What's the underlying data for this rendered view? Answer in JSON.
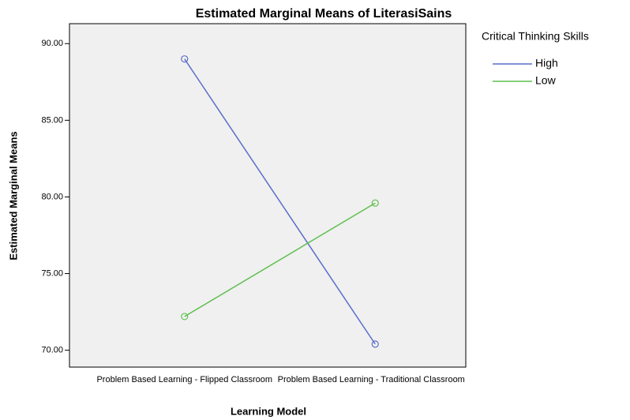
{
  "chart_data": {
    "type": "line",
    "title": "Estimated Marginal Means of LiterasiSains",
    "x_label": "Learning Model",
    "y_label": "Estimated Marginal Means",
    "legend_title": "Critical Thinking Skills",
    "legend_position": "upper right outside",
    "categories": [
      "Problem Based Learning - Flipped Classroom",
      "Problem Based Learning - Traditional Classroom"
    ],
    "series": [
      {
        "name": "High",
        "color": "#5b6ec8",
        "values": [
          89.0,
          70.4
        ]
      },
      {
        "name": "Low",
        "color": "#5fbf4f",
        "values": [
          72.2,
          79.6
        ]
      }
    ],
    "ylim": [
      68.9,
      91.3
    ],
    "yticks": [
      {
        "value": 70,
        "label": "70.00"
      },
      {
        "value": 75,
        "label": "75.00"
      },
      {
        "value": 80,
        "label": "80.00"
      },
      {
        "value": 85,
        "label": "85.00"
      },
      {
        "value": 90,
        "label": "90.00"
      }
    ],
    "markers": "open circle"
  }
}
